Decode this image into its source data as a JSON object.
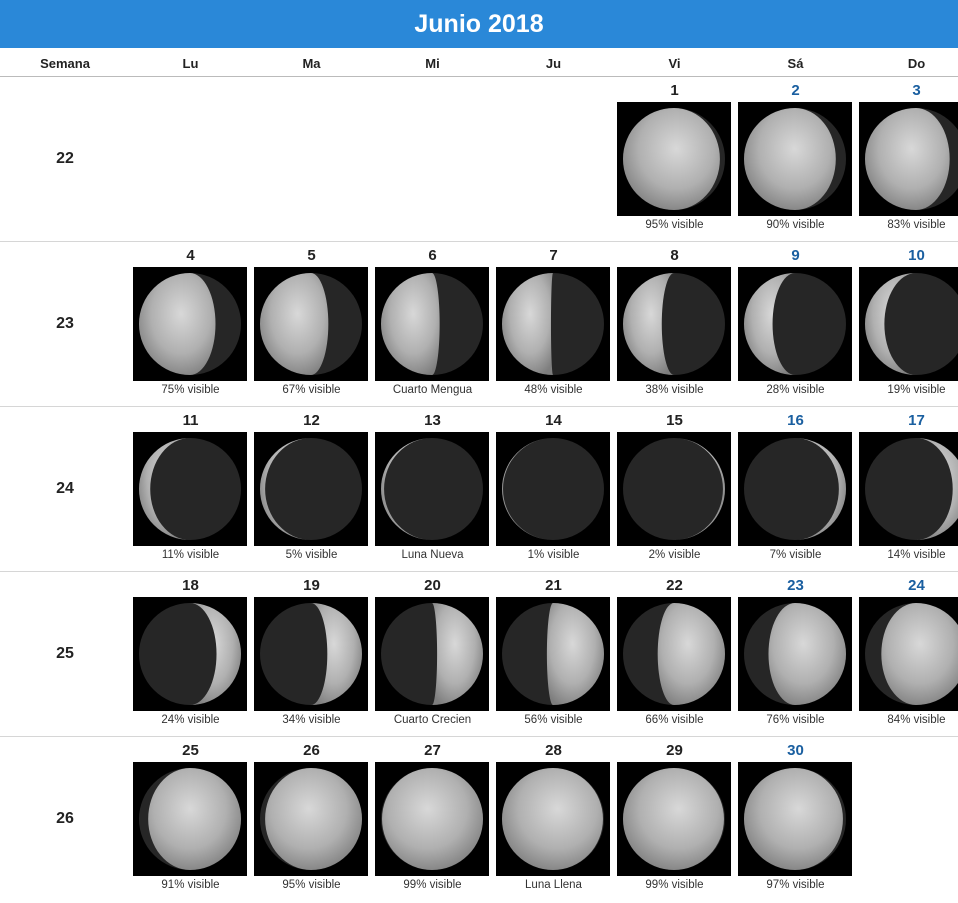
{
  "header": {
    "title": "Junio 2018"
  },
  "columns": [
    "Semana",
    "Lu",
    "Ma",
    "Mi",
    "Ju",
    "Vi",
    "Sá",
    "Do"
  ],
  "weeks": [
    {
      "week": 22,
      "days": [
        null,
        null,
        null,
        null,
        {
          "day": 1,
          "caption": "95% visible"
        },
        {
          "day": 2,
          "caption": "90% visible"
        },
        {
          "day": 3,
          "caption": "83% visible"
        }
      ]
    },
    {
      "week": 23,
      "days": [
        {
          "day": 4,
          "caption": "75% visible"
        },
        {
          "day": 5,
          "caption": "67% visible"
        },
        {
          "day": 6,
          "caption": "Cuarto Mengua"
        },
        {
          "day": 7,
          "caption": "48% visible"
        },
        {
          "day": 8,
          "caption": "38% visible"
        },
        {
          "day": 9,
          "caption": "28% visible"
        },
        {
          "day": 10,
          "caption": "19% visible"
        }
      ]
    },
    {
      "week": 24,
      "days": [
        {
          "day": 11,
          "caption": "11% visible"
        },
        {
          "day": 12,
          "caption": "5% visible"
        },
        {
          "day": 13,
          "caption": "Luna Nueva"
        },
        {
          "day": 14,
          "caption": "1% visible"
        },
        {
          "day": 15,
          "caption": "2% visible"
        },
        {
          "day": 16,
          "caption": "7% visible"
        },
        {
          "day": 17,
          "caption": "14% visible"
        }
      ]
    },
    {
      "week": 25,
      "days": [
        {
          "day": 18,
          "caption": "24% visible"
        },
        {
          "day": 19,
          "caption": "34% visible"
        },
        {
          "day": 20,
          "caption": "Cuarto Crecien"
        },
        {
          "day": 21,
          "caption": "56% visible"
        },
        {
          "day": 22,
          "caption": "66% visible"
        },
        {
          "day": 23,
          "caption": "76% visible"
        },
        {
          "day": 24,
          "caption": "84% visible"
        }
      ]
    },
    {
      "week": 26,
      "days": [
        {
          "day": 25,
          "caption": "91% visible"
        },
        {
          "day": 26,
          "caption": "95% visible"
        },
        {
          "day": 27,
          "caption": "99% visible"
        },
        {
          "day": 28,
          "caption": "Luna Llena"
        },
        {
          "day": 29,
          "caption": "99% visible"
        },
        {
          "day": 30,
          "caption": "97% visible"
        },
        null
      ]
    }
  ]
}
